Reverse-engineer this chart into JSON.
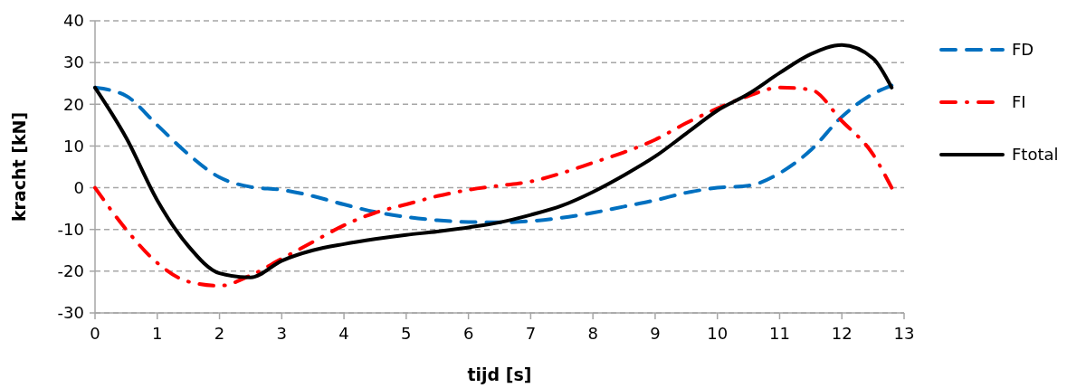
{
  "chart_data": {
    "type": "line",
    "xlabel": "tijd [s]",
    "ylabel": "kracht [kN]",
    "x": [
      0,
      0.5,
      1,
      1.5,
      2,
      2.5,
      3,
      3.5,
      4,
      4.5,
      5,
      5.5,
      6,
      6.5,
      7,
      7.5,
      8,
      8.5,
      9,
      9.5,
      10,
      10.5,
      11,
      11.5,
      12,
      12.5,
      12.8
    ],
    "series": [
      {
        "name": "FD",
        "color": "#0070c0",
        "line_style": "dashed",
        "values": [
          24,
          22,
          15,
          8,
          2.5,
          0.2,
          -0.5,
          -2,
          -4,
          -5.8,
          -7,
          -7.8,
          -8.2,
          -8.3,
          -8,
          -7.2,
          -6,
          -4.5,
          -3,
          -1.2,
          0,
          0.5,
          3.5,
          9,
          17,
          22.5,
          24.5
        ]
      },
      {
        "name": "FI",
        "color": "#ff0000",
        "line_style": "dashdot",
        "values": [
          0,
          -10,
          -18,
          -22.5,
          -23.5,
          -21,
          -17,
          -13,
          -9,
          -6,
          -4,
          -2,
          -0.5,
          0.5,
          1.5,
          3.5,
          6,
          8.5,
          11.5,
          15.5,
          19,
          22,
          24,
          23.5,
          16,
          8,
          0
        ]
      },
      {
        "name": "Ftotal",
        "color": "#000000",
        "line_style": "solid",
        "values": [
          24,
          12,
          -3,
          -14,
          -20.5,
          -21.5,
          -17.5,
          -15,
          -13.5,
          -12.3,
          -11.3,
          -10.5,
          -9.5,
          -8.3,
          -6.5,
          -4.3,
          -1,
          3,
          7.5,
          13,
          18.5,
          22.5,
          27.5,
          32,
          34.2,
          31,
          24
        ]
      }
    ],
    "xlim": [
      0,
      13
    ],
    "xticks": [
      0,
      1,
      2,
      3,
      4,
      5,
      6,
      7,
      8,
      9,
      10,
      11,
      12,
      13
    ],
    "ylim": [
      -30,
      40
    ],
    "yticks": [
      -30,
      -20,
      -10,
      0,
      10,
      20,
      30,
      40
    ],
    "grid": "y",
    "legend": "right"
  }
}
